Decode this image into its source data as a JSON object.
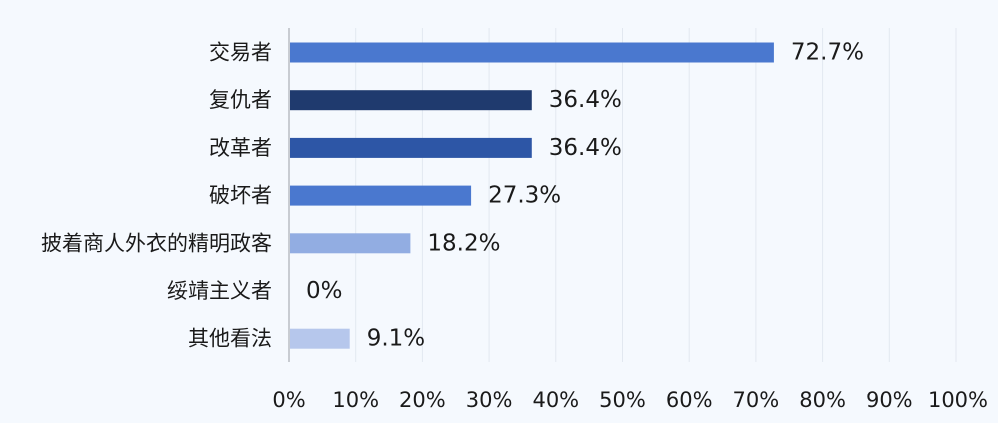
{
  "chart_data": {
    "type": "bar",
    "orientation": "horizontal",
    "categories": [
      "交易者",
      "复仇者",
      "改革者",
      "破坏者",
      "披着商人外衣的精明政客",
      "绥靖主义者",
      "其他看法"
    ],
    "values": [
      72.7,
      36.4,
      36.4,
      27.3,
      18.2,
      0,
      9.1
    ],
    "value_labels": [
      "72.7%",
      "36.4%",
      "36.4%",
      "27.3%",
      "18.2%",
      "0%",
      "9.1%"
    ],
    "bar_colors": [
      "#4a78cf",
      "#1f3a6e",
      "#2d56a6",
      "#4a78cf",
      "#92ade2",
      "#92ade2",
      "#b6c7ec"
    ],
    "xlim": [
      0,
      100
    ],
    "x_ticks": [
      "0%",
      "10%",
      "20%",
      "30%",
      "40%",
      "50%",
      "60%",
      "70%",
      "80%",
      "90%",
      "100%"
    ],
    "grid": true,
    "legend": "none",
    "title": "",
    "xlabel": "",
    "ylabel": ""
  },
  "colors": {
    "background": "#f5f9fe",
    "gridline": "#e2e8f0",
    "axis": "#c8ccd2"
  }
}
